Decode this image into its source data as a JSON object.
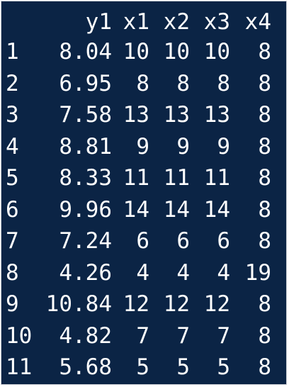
{
  "console": {
    "background": "#0b2445",
    "text_color": "#ffffff"
  },
  "table": {
    "columns": [
      "y1",
      "x1",
      "x2",
      "x3",
      "x4"
    ],
    "rows": [
      {
        "name": "1",
        "values": [
          "8.04",
          "10",
          "10",
          "10",
          "8"
        ]
      },
      {
        "name": "2",
        "values": [
          "6.95",
          "8",
          "8",
          "8",
          "8"
        ]
      },
      {
        "name": "3",
        "values": [
          "7.58",
          "13",
          "13",
          "13",
          "8"
        ]
      },
      {
        "name": "4",
        "values": [
          "8.81",
          "9",
          "9",
          "9",
          "8"
        ]
      },
      {
        "name": "5",
        "values": [
          "8.33",
          "11",
          "11",
          "11",
          "8"
        ]
      },
      {
        "name": "6",
        "values": [
          "9.96",
          "14",
          "14",
          "14",
          "8"
        ]
      },
      {
        "name": "7",
        "values": [
          "7.24",
          "6",
          "6",
          "6",
          "8"
        ]
      },
      {
        "name": "8",
        "values": [
          "4.26",
          "4",
          "4",
          "4",
          "19"
        ]
      },
      {
        "name": "9",
        "values": [
          "10.84",
          "12",
          "12",
          "12",
          "8"
        ]
      },
      {
        "name": "10",
        "values": [
          "4.82",
          "7",
          "7",
          "7",
          "8"
        ]
      },
      {
        "name": "11",
        "values": [
          "5.68",
          "5",
          "5",
          "5",
          "8"
        ]
      }
    ]
  }
}
